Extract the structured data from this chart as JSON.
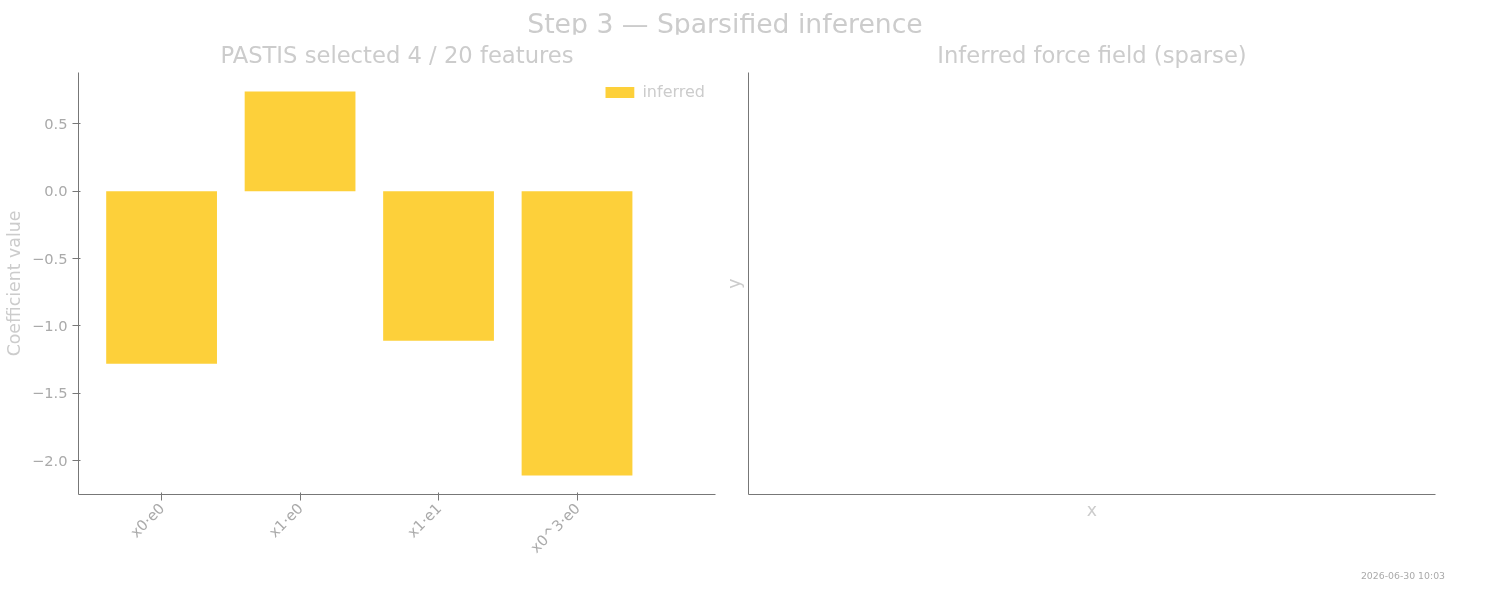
{
  "chart_data": [
    {
      "type": "bar",
      "title": "PASTIS selected 4 / 20 features",
      "ylabel": "Coefficient value",
      "categories": [
        "x0·e0",
        "x1·e0",
        "x1·e1",
        "x0^3·e0"
      ],
      "series": [
        {
          "name": "inferred",
          "color": "#fdd03a",
          "values": [
            -1.28,
            0.74,
            -1.11,
            -2.11
          ]
        }
      ],
      "ylim": [
        -2.25,
        0.88
      ],
      "yticks": [
        {
          "value": -2.0,
          "label": "−2.0"
        },
        {
          "value": -1.5,
          "label": "−1.5"
        },
        {
          "value": -1.0,
          "label": "−1.0"
        },
        {
          "value": -0.5,
          "label": "−0.5"
        },
        {
          "value": 0.0,
          "label": "0.0"
        },
        {
          "value": 0.5,
          "label": "0.5"
        }
      ],
      "legend": "top right",
      "grid": false,
      "annotations": [
        "Step 3 — Sparsified inference"
      ]
    },
    {
      "type": "other",
      "title": "Inferred force field (sparse)",
      "xlabel": "x",
      "ylabel": "y",
      "annotations": [
        "2026-06-30 10:03"
      ]
    }
  ]
}
